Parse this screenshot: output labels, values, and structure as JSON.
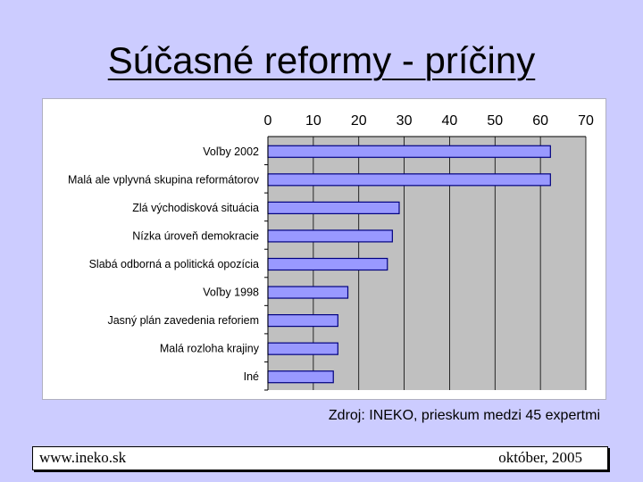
{
  "slide": {
    "title": "Súčasné reformy - príčiny",
    "source": "Zdroj: INEKO, prieskum medzi 45 expertmi",
    "footer_left": "www.ineko.sk",
    "footer_right": "október, 2005"
  },
  "colors": {
    "background": "#ccccff",
    "plot_area": "#c0c0c0",
    "bar_fill": "#9999ff",
    "bar_stroke": "#000080"
  },
  "chart_data": {
    "type": "bar",
    "orientation": "horizontal",
    "title": "",
    "xlabel": "",
    "ylabel": "",
    "x_axis_position": "top",
    "xlim": [
      0,
      70
    ],
    "ticks": [
      0,
      10,
      20,
      30,
      40,
      50,
      60,
      70
    ],
    "grid": true,
    "legend": "none",
    "categories": [
      "Voľby 2002",
      "Malá ale vplyvná skupina reformátorov",
      "Zlá východisková situácia",
      "Nízka úroveň demokracie",
      "Slabá odborná a politická opozícia",
      "Voľby 1998",
      "Jasný plán zavedenia reforiem",
      "Malá rozloha krajiny",
      "Iné"
    ],
    "values": [
      62.2,
      62.2,
      28.9,
      27.4,
      26.3,
      17.6,
      15.4,
      15.4,
      14.4
    ]
  }
}
